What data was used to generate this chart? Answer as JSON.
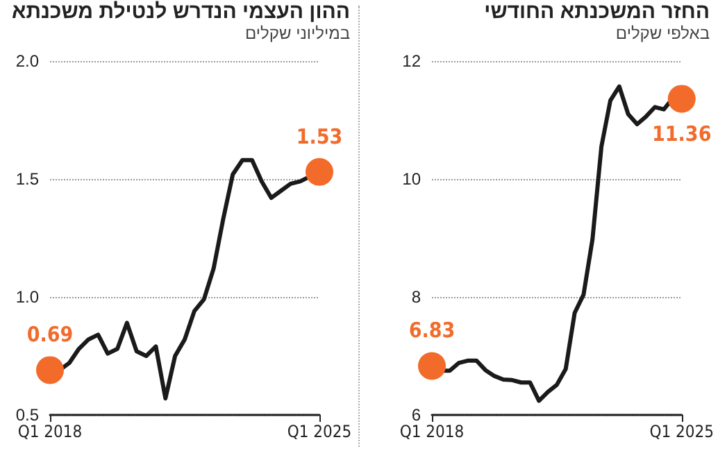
{
  "chart_data": [
    {
      "type": "line",
      "title": "ההון העצמי הנדרש לנטילת משכנתא",
      "subtitle": "במיליוני שקלים",
      "categories": [
        "Q1 2018",
        null,
        null,
        null,
        null,
        null,
        null,
        null,
        null,
        null,
        null,
        null,
        null,
        null,
        null,
        null,
        null,
        null,
        null,
        null,
        null,
        null,
        null,
        null,
        null,
        null,
        null,
        null,
        "Q1 2025"
      ],
      "series": [
        {
          "color": "#1a1a1a",
          "values": [
            0.69,
            0.69,
            0.72,
            0.78,
            0.82,
            0.84,
            0.76,
            0.78,
            0.89,
            0.77,
            0.75,
            0.79,
            0.57,
            0.75,
            0.82,
            0.94,
            0.99,
            1.12,
            1.33,
            1.52,
            1.58,
            1.58,
            1.49,
            1.42,
            1.45,
            1.48,
            1.49,
            1.51,
            1.53
          ],
          "value_labels": [
            "0.69",
            null,
            null,
            null,
            null,
            null,
            null,
            null,
            null,
            null,
            null,
            null,
            null,
            null,
            null,
            null,
            null,
            null,
            null,
            null,
            null,
            null,
            null,
            null,
            null,
            null,
            null,
            null,
            "1.53"
          ],
          "colors": [
            "#f26b2a",
            "#1a1a1a",
            "#1a1a1a",
            "#1a1a1a",
            "#1a1a1a",
            "#1a1a1a",
            "#1a1a1a",
            "#1a1a1a",
            "#1a1a1a",
            "#1a1a1a",
            "#1a1a1a",
            "#1a1a1a",
            "#1a1a1a",
            "#1a1a1a",
            "#1a1a1a",
            "#1a1a1a",
            "#1a1a1a",
            "#1a1a1a",
            "#1a1a1a",
            "#1a1a1a",
            "#1a1a1a",
            "#1a1a1a",
            "#1a1a1a",
            "#1a1a1a",
            "#1a1a1a",
            "#1a1a1a",
            "#1a1a1a",
            "#1a1a1a",
            "#f26b2a"
          ]
        }
      ],
      "ylim": [
        0.5,
        2.0
      ],
      "yticks": [
        {
          "value": 0.5,
          "label": "0.5"
        },
        {
          "value": 1.0,
          "label": "1.0"
        },
        {
          "value": 1.5,
          "label": "1.5"
        },
        {
          "value": 2.0,
          "label": "2.0"
        }
      ],
      "grid": "y"
    },
    {
      "type": "line",
      "title": "החזר המשכנתא החודשי",
      "subtitle": "באלפי שקלים",
      "categories": [
        "Q1 2018",
        null,
        null,
        null,
        null,
        null,
        null,
        null,
        null,
        null,
        null,
        null,
        null,
        null,
        null,
        null,
        null,
        null,
        null,
        null,
        null,
        null,
        null,
        null,
        null,
        null,
        null,
        null,
        "Q1 2025"
      ],
      "series": [
        {
          "color": "#1a1a1a",
          "values": [
            6.83,
            6.75,
            6.75,
            6.88,
            6.92,
            6.92,
            6.76,
            6.66,
            6.6,
            6.59,
            6.55,
            6.55,
            6.24,
            6.39,
            6.51,
            6.78,
            7.73,
            8.04,
            8.98,
            10.55,
            11.33,
            11.57,
            11.1,
            10.93,
            11.06,
            11.22,
            11.18,
            11.37,
            11.36
          ],
          "value_labels": [
            "6.83",
            null,
            null,
            null,
            null,
            null,
            null,
            null,
            null,
            null,
            null,
            null,
            null,
            null,
            null,
            null,
            null,
            null,
            null,
            null,
            null,
            null,
            null,
            null,
            null,
            null,
            null,
            null,
            "11.36"
          ],
          "colors": [
            "#f26b2a",
            "#1a1a1a",
            "#1a1a1a",
            "#1a1a1a",
            "#1a1a1a",
            "#1a1a1a",
            "#1a1a1a",
            "#1a1a1a",
            "#1a1a1a",
            "#1a1a1a",
            "#1a1a1a",
            "#1a1a1a",
            "#1a1a1a",
            "#1a1a1a",
            "#1a1a1a",
            "#1a1a1a",
            "#1a1a1a",
            "#1a1a1a",
            "#1a1a1a",
            "#1a1a1a",
            "#1a1a1a",
            "#1a1a1a",
            "#1a1a1a",
            "#1a1a1a",
            "#1a1a1a",
            "#1a1a1a",
            "#1a1a1a",
            "#1a1a1a",
            "#f26b2a"
          ]
        }
      ],
      "ylim": [
        6,
        12
      ],
      "yticks": [
        6,
        8,
        10,
        12
      ],
      "grid": "y"
    }
  ]
}
